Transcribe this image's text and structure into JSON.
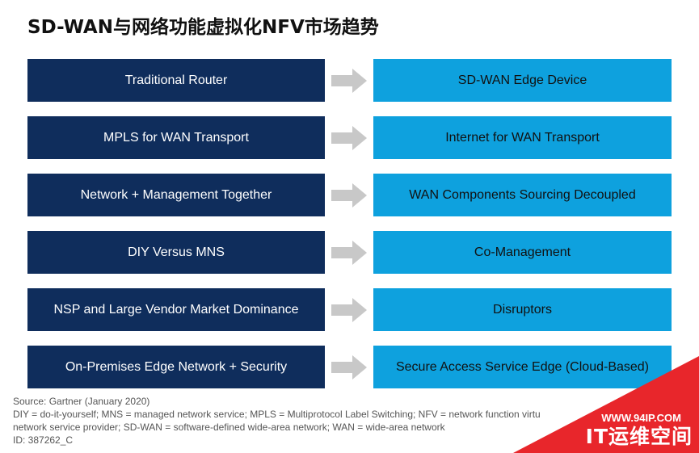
{
  "title": "SD-WAN与网络功能虚拟化NFV市场趋势",
  "rows": [
    {
      "from": "Traditional Router",
      "to": "SD-WAN Edge Device"
    },
    {
      "from": "MPLS for WAN Transport",
      "to": "Internet for WAN Transport"
    },
    {
      "from": "Network + Management Together",
      "to": "WAN Components Sourcing Decoupled"
    },
    {
      "from": "DIY Versus MNS",
      "to": "Co-Management"
    },
    {
      "from": "NSP and Large Vendor Market Dominance",
      "to": "Disruptors"
    },
    {
      "from": "On-Premises Edge Network + Security",
      "to": "Secure Access Service Edge (Cloud-Based)"
    }
  ],
  "footer": {
    "source": "Source: Gartner (January 2020)",
    "line1": "DIY = do-it-yourself; MNS = managed network service; MPLS = Multiprotocol Label Switching; NFV = network function virtu",
    "line2": "network service provider; SD-WAN = software-defined wide-area network; WAN = wide-area network",
    "id": "ID: 387262_C"
  },
  "watermark": {
    "url": "WWW.94IP.COM",
    "name": "IT运维空间"
  },
  "colors": {
    "left_box": "#0f2d5c",
    "right_box": "#0ea1de",
    "arrow": "#c8c8c8",
    "watermark_bg": "#e8262b"
  }
}
